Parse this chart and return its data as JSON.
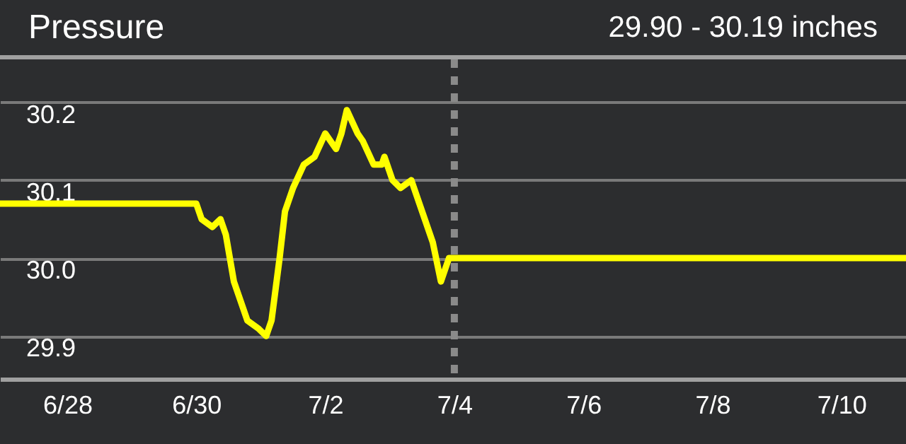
{
  "chart_data": {
    "type": "line",
    "title": "Pressure",
    "subtitle": "29.90 - 30.19 inches",
    "x": [
      "--06-26T23:00",
      "--06-30T00:00",
      "--06-30T02:00",
      "--06-30T06:00",
      "--06-30T09:00",
      "--06-30T11:00",
      "--06-30T14:00",
      "--06-30T17:00",
      "--06-30T19:00",
      "--06-30T23:00",
      "--07-01T02:00",
      "--07-01T04:00",
      "--07-01T07:00",
      "--07-01T09:00",
      "--07-01T12:00",
      "--07-01T16:00",
      "--07-01T20:00",
      "--07-02T00:00",
      "--07-02T04:00",
      "--07-02T06:00",
      "--07-02T08:00",
      "--07-02T12:00",
      "--07-02T14:00",
      "--07-02T18:00",
      "--07-02T21:00",
      "--07-02T22:00",
      "--07-03T01:00",
      "--07-03T04:00",
      "--07-03T08:00",
      "--07-03T11:00",
      "--07-03T16:00",
      "--07-03T19:00",
      "--07-03T22:00",
      "--07-11T00:00"
    ],
    "series": [
      {
        "color": "#ffff00",
        "values": [
          30.07,
          30.07,
          30.05,
          30.04,
          30.05,
          30.03,
          29.97,
          29.94,
          29.92,
          29.91,
          29.9,
          29.92,
          30.0,
          30.06,
          30.09,
          30.12,
          30.13,
          30.16,
          30.14,
          30.16,
          30.19,
          30.16,
          30.15,
          30.12,
          30.12,
          30.13,
          30.1,
          30.09,
          30.1,
          30.07,
          30.02,
          29.97,
          30.0,
          30.0
        ]
      }
    ],
    "xlim": [
      "--06-26T23:00",
      "--07-11T00:00"
    ],
    "xticks": [
      {
        "value": "--06-28",
        "label": "6/28"
      },
      {
        "value": "--06-30",
        "label": "6/30"
      },
      {
        "value": "--07-02",
        "label": "7/2"
      },
      {
        "value": "--07-04",
        "label": "7/4"
      },
      {
        "value": "--07-06",
        "label": "7/6"
      },
      {
        "value": "--07-08",
        "label": "7/8"
      },
      {
        "value": "--07-10",
        "label": "7/10"
      }
    ],
    "ylim": [
      29.845,
      30.255
    ],
    "yticks": [
      {
        "value": 29.9,
        "label": "29.9"
      },
      {
        "value": 30.0,
        "label": "30.0"
      },
      {
        "value": 30.1,
        "label": "30.1"
      },
      {
        "value": 30.2,
        "label": "30.2"
      }
    ],
    "ref_lines": [
      {
        "axis": "x",
        "value": "--07-04",
        "color": "#8a8a8a",
        "line_style": "dashed"
      }
    ],
    "grid": "y",
    "line_style": "solid",
    "marker": "none"
  }
}
